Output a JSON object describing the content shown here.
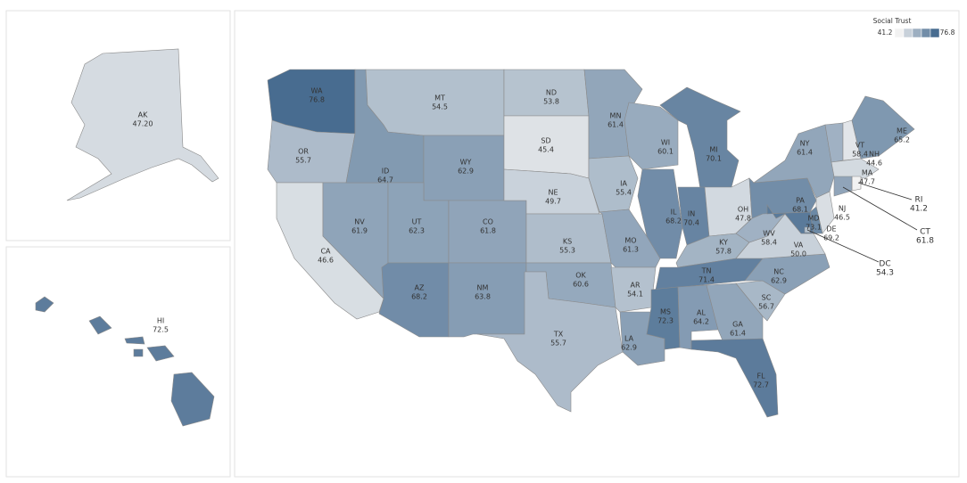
{
  "chart_data": {
    "type": "choropleth",
    "legend_title": "Social Trust",
    "color_range": [
      41.2,
      76.8
    ],
    "color_low": "#f2f2f2",
    "color_high": "#486c90",
    "categories": [
      "WA",
      "OR",
      "CA",
      "NV",
      "ID",
      "MT",
      "WY",
      "UT",
      "AZ",
      "CO",
      "NM",
      "ND",
      "SD",
      "NE",
      "KS",
      "OK",
      "TX",
      "MN",
      "IA",
      "MO",
      "AR",
      "LA",
      "WI",
      "IL",
      "MI",
      "IN",
      "OH",
      "KY",
      "TN",
      "MS",
      "AL",
      "GA",
      "FL",
      "SC",
      "NC",
      "VA",
      "WV",
      "PA",
      "NY",
      "VT",
      "NH",
      "ME",
      "MA",
      "RI",
      "CT",
      "NJ",
      "DE",
      "MD",
      "DC",
      "AK",
      "HI"
    ],
    "values": [
      76.8,
      55.7,
      46.6,
      61.9,
      64.7,
      54.5,
      62.9,
      62.3,
      68.2,
      61.8,
      63.8,
      53.8,
      45.4,
      49.7,
      55.3,
      60.6,
      55.7,
      61.4,
      55.4,
      61.3,
      54.1,
      62.9,
      60.1,
      68.2,
      70.1,
      70.4,
      47.8,
      57.8,
      71.4,
      72.3,
      64.2,
      61.4,
      72.7,
      56.7,
      62.9,
      50.0,
      58.4,
      68.1,
      61.4,
      58.4,
      44.6,
      65.2,
      47.7,
      41.2,
      61.8,
      46.5,
      69.2,
      73.1,
      54.3,
      47.2,
      72.5
    ],
    "value_labels": [
      "76.8",
      "55.7",
      "46.6",
      "61.9",
      "64.7",
      "54.5",
      "62.9",
      "62.3",
      "68.2",
      "61.8",
      "63.8",
      "53.8",
      "45.4",
      "49.7",
      "55.3",
      "60.6",
      "55.7",
      "61.4",
      "55.4",
      "61.3",
      "54.1",
      "62.9",
      "60.1",
      "68.2",
      "70.1",
      "70.4",
      "47.8",
      "57.8",
      "71.4",
      "72.3",
      "64.2",
      "61.4",
      "72.7",
      "56.7",
      "62.9",
      "50.0",
      "58.4",
      "68.1",
      "61.4",
      "58.4",
      "44.6",
      "65.2",
      "47.7",
      "41.2",
      "61.8",
      "46.5",
      "69.2",
      "73.1",
      "54.3",
      "47.20",
      "72.5"
    ]
  }
}
